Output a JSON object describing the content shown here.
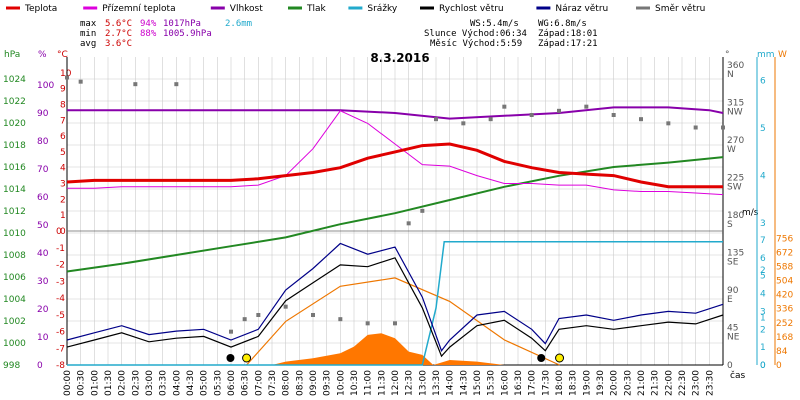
{
  "legend": [
    {
      "label": "Teplota",
      "color": "#e00000"
    },
    {
      "label": "Přízemní teplota",
      "color": "#dd00dd"
    },
    {
      "label": "Vlhkost",
      "color": "#8800aa"
    },
    {
      "label": "Tlak",
      "color": "#228822"
    },
    {
      "label": "Srážky",
      "color": "#22aacc"
    },
    {
      "label": "Rychlost větru",
      "color": "#000000"
    },
    {
      "label": "Náraz větru",
      "color": "#000088"
    },
    {
      "label": "Směr větru",
      "color": "#777777"
    }
  ],
  "stats": {
    "max_label": "max",
    "max_temp": "5.6°C",
    "max_hum": "94%",
    "max_press": "1017hPa",
    "sum_rain": "2.6mm",
    "min_label": "min",
    "min_temp": "2.7°C",
    "min_hum": "88%",
    "min_press": "1005.9hPa",
    "avg_label": "avg",
    "avg_temp": "3.6°C",
    "ws": "WS:5.4m/s",
    "wg": "WG:6.8m/s",
    "sun_rise": "Slunce Východ:06:34",
    "sun_set": "Západ:18:01",
    "moon_rise": "Měsíc  Východ:5:59",
    "moon_set": "Západ:17:21"
  },
  "title": "8.3.2016",
  "axis_units": {
    "hpa": "hPa",
    "pct": "%",
    "degc": "°C",
    "deg": "°",
    "mm": "mm",
    "ms": "m/s",
    "w": "W",
    "cas": "čas"
  },
  "colors": {
    "grid": "#cccccc",
    "press_axis": "#228822",
    "hum_axis": "#8800aa",
    "temp_axis": "#cc0000",
    "rain_axis": "#22aacc",
    "rad_axis": "#ee7700",
    "sun_arc": "#ee7700",
    "radiation_fill": "#ff7700"
  },
  "chart_data": {
    "type": "line",
    "title": "8.3.2016",
    "xlabel": "čas",
    "x_ticks": [
      "00:00",
      "00:30",
      "01:00",
      "01:30",
      "02:00",
      "02:30",
      "03:00",
      "03:30",
      "04:00",
      "04:30",
      "05:00",
      "05:30",
      "06:00",
      "06:30",
      "07:00",
      "07:30",
      "08:00",
      "08:30",
      "09:00",
      "09:30",
      "10:00",
      "10:30",
      "11:00",
      "11:30",
      "12:00",
      "12:30",
      "13:00",
      "13:30",
      "14:00",
      "14:30",
      "15:00",
      "15:30",
      "16:00",
      "16:30",
      "17:00",
      "17:30",
      "18:00",
      "18:30",
      "19:00",
      "19:30",
      "20:00",
      "20:30",
      "21:00",
      "21:30",
      "22:00",
      "22:30",
      "23:00",
      "23:30"
    ],
    "axes": {
      "pressure_hpa": {
        "range": [
          998,
          1026
        ],
        "ticks": [
          "998",
          "1000",
          "1002",
          "1004",
          "1006",
          "1008",
          "1010",
          "1012",
          "1014",
          "1016",
          "1018",
          "1020",
          "1022",
          "1024"
        ]
      },
      "humidity_pct": {
        "range": [
          0,
          110
        ],
        "ticks": [
          "0",
          "10",
          "20",
          "30",
          "40",
          "50",
          "60",
          "70",
          "80",
          "90",
          "100"
        ]
      },
      "temp_upper_c": {
        "range": [
          0,
          11
        ],
        "ticks": [
          "0",
          "1",
          "2",
          "3",
          "4",
          "5",
          "6",
          "7",
          "8",
          "9",
          "10"
        ]
      },
      "temp_lower_c": {
        "range": [
          -8,
          0
        ],
        "ticks": [
          "-8",
          "-7",
          "-6",
          "-5",
          "-4",
          "-3",
          "-2",
          "-1",
          "0"
        ]
      },
      "wind_dir_deg": {
        "ticks": [
          "360",
          "315",
          "270",
          "225",
          "180",
          "135",
          "90",
          "45",
          "0"
        ],
        "dirs": [
          "N",
          "NW",
          "W",
          "SW",
          "S",
          "SE",
          "E",
          "NE"
        ]
      },
      "rain_mm_upper": {
        "range": [
          0,
          6.5
        ],
        "ticks": [
          "0",
          "1",
          "2",
          "3",
          "4",
          "5",
          "6"
        ]
      },
      "wind_ms": {
        "range": [
          0,
          7.5
        ],
        "ticks": [
          "0",
          "1",
          "2",
          "3",
          "4",
          "5",
          "6",
          "7"
        ]
      },
      "radiation_w": {
        "range": [
          0,
          800
        ],
        "ticks": [
          "0",
          "84",
          "168",
          "252",
          "336",
          "420",
          "504",
          "588",
          "672",
          "756"
        ]
      }
    },
    "series": [
      {
        "name": "Teplota",
        "unit": "°C",
        "x": [
          0,
          1,
          2,
          3,
          4,
          5,
          6,
          7,
          8,
          9,
          10,
          11,
          12,
          13,
          14,
          15,
          16,
          17,
          18,
          19,
          20,
          21,
          22,
          23,
          24
        ],
        "values": [
          3.1,
          3.2,
          3.2,
          3.2,
          3.2,
          3.2,
          3.2,
          3.3,
          3.5,
          3.7,
          4.0,
          4.6,
          5.0,
          5.4,
          5.5,
          5.1,
          4.4,
          4.0,
          3.7,
          3.6,
          3.5,
          3.1,
          2.8,
          2.8,
          2.8
        ]
      },
      {
        "name": "Přízemní teplota",
        "unit": "°C",
        "x": [
          0,
          1,
          2,
          3,
          4,
          5,
          6,
          7,
          8,
          9,
          10,
          11,
          12,
          13,
          14,
          15,
          16,
          17,
          18,
          19,
          20,
          21,
          22,
          23,
          24
        ],
        "values": [
          2.7,
          2.7,
          2.8,
          2.8,
          2.8,
          2.8,
          2.8,
          2.9,
          3.5,
          5.2,
          7.6,
          6.8,
          5.5,
          4.2,
          4.1,
          3.5,
          3.0,
          3.0,
          2.9,
          2.9,
          2.6,
          2.5,
          2.5,
          2.4,
          2.3
        ]
      },
      {
        "name": "Vlhkost",
        "unit": "%",
        "x": [
          0,
          2,
          4,
          6,
          8,
          10,
          12,
          14,
          16,
          18,
          20,
          22,
          23.5,
          24
        ],
        "values": [
          91,
          91,
          91,
          91,
          91,
          91,
          90,
          88,
          89,
          90,
          92,
          92,
          91,
          90
        ]
      },
      {
        "name": "Tlak",
        "unit": "hPa",
        "x": [
          0,
          2,
          4,
          6,
          8,
          10,
          12,
          14,
          16,
          18,
          20,
          22,
          24
        ],
        "values": [
          1006.5,
          1007.2,
          1008.0,
          1008.8,
          1009.6,
          1010.8,
          1011.8,
          1013.0,
          1014.2,
          1015.2,
          1016.0,
          1016.4,
          1016.9
        ]
      },
      {
        "name": "Srážky",
        "unit": "mm",
        "x": [
          0,
          13,
          13.5,
          13.8,
          14.2,
          24
        ],
        "values": [
          0,
          0,
          1.2,
          2.6,
          2.6,
          2.6
        ]
      },
      {
        "name": "Rychlost větru",
        "unit": "m/s",
        "x": [
          0,
          1,
          2,
          3,
          4,
          5,
          6,
          7,
          8,
          9,
          10,
          11,
          12,
          13,
          13.7,
          14,
          15,
          16,
          17,
          17.5,
          18,
          19,
          20,
          21,
          22,
          23,
          24
        ],
        "values": [
          1.0,
          1.4,
          1.8,
          1.3,
          1.5,
          1.6,
          1.0,
          1.6,
          3.6,
          4.6,
          5.6,
          5.5,
          6.0,
          3.2,
          0.5,
          1.0,
          2.2,
          2.5,
          1.5,
          0.8,
          2.0,
          2.2,
          2.0,
          2.2,
          2.4,
          2.3,
          2.8
        ]
      },
      {
        "name": "Náraz větru",
        "unit": "m/s",
        "x": [
          0,
          1,
          2,
          3,
          4,
          5,
          6,
          7,
          8,
          9,
          10,
          11,
          12,
          13,
          13.7,
          14,
          15,
          16,
          17,
          17.5,
          18,
          19,
          20,
          21,
          22,
          23,
          24
        ],
        "values": [
          1.4,
          1.8,
          2.2,
          1.7,
          1.9,
          2.0,
          1.4,
          2.0,
          4.2,
          5.4,
          6.8,
          6.2,
          6.6,
          3.8,
          0.8,
          1.4,
          2.8,
          3.0,
          2.0,
          1.2,
          2.6,
          2.8,
          2.5,
          2.8,
          3.0,
          2.9,
          3.4
        ]
      },
      {
        "name": "Směr větru",
        "unit": "°",
        "x": [
          0,
          0.5,
          2.5,
          4,
          6,
          6.5,
          7,
          8,
          9,
          10,
          11,
          12,
          12.5,
          13,
          13.5,
          14.5,
          15.5,
          16,
          17,
          18,
          19,
          20,
          21,
          22,
          23,
          24
        ],
        "values": [
          345,
          340,
          337,
          337,
          40,
          55,
          60,
          70,
          60,
          55,
          50,
          50,
          170,
          185,
          295,
          290,
          295,
          310,
          300,
          305,
          310,
          300,
          295,
          290,
          285,
          285
        ]
      },
      {
        "name": "Výška Slunce",
        "unit": "W",
        "x": [
          6.57,
          8,
          10,
          12,
          14,
          16,
          18.02
        ],
        "values": [
          0,
          260,
          470,
          520,
          380,
          150,
          0
        ]
      },
      {
        "name": "Sluneční záření",
        "unit": "W",
        "x": [
          7.5,
          8,
          9,
          10,
          10.5,
          11,
          11.5,
          12,
          12.5,
          13,
          13.4,
          14,
          15,
          16
        ],
        "values": [
          0,
          20,
          40,
          70,
          110,
          180,
          190,
          160,
          80,
          60,
          0,
          30,
          20,
          0
        ]
      }
    ]
  }
}
